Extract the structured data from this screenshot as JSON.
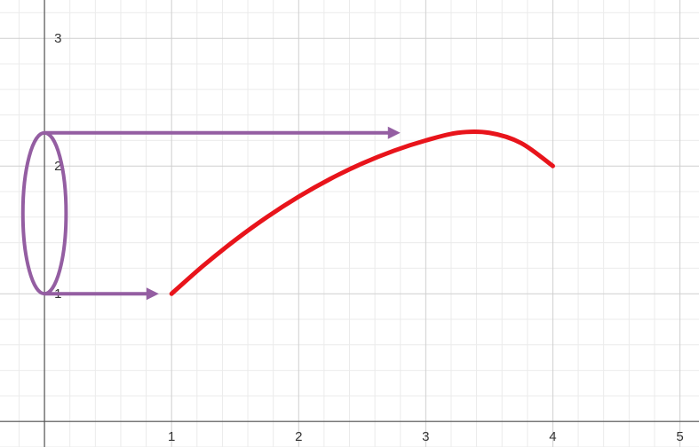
{
  "colors": {
    "curve": "#e8141b",
    "annotation": "#945ea2",
    "grid_minor": "#ebebeb",
    "grid_major": "#cfcfcf",
    "axis": "#555555"
  },
  "chart_data": {
    "type": "line",
    "title": "",
    "xlabel": "",
    "ylabel": "",
    "xlim": [
      -0.35,
      5.15
    ],
    "ylim": [
      -0.2,
      3.3
    ],
    "grid": true,
    "x_ticks": [
      "1",
      "2",
      "3",
      "4",
      "5"
    ],
    "y_ticks": [
      "1",
      "2",
      "3"
    ],
    "series": [
      {
        "x": [
          1.0,
          1.25,
          1.5,
          1.75,
          2.0,
          2.25,
          2.5,
          2.75,
          3.0,
          3.25,
          3.5,
          3.75,
          4.0
        ],
        "y": [
          1.0,
          1.22,
          1.42,
          1.6,
          1.76,
          1.9,
          2.02,
          2.12,
          2.2,
          2.26,
          2.26,
          2.18,
          2.0
        ]
      }
    ],
    "annotations": {
      "range_ellipse": {
        "x_center": 0.0,
        "y_min": 1.0,
        "y_max": 2.26,
        "x_half_width": 0.17
      },
      "arrows": [
        {
          "from": [
            0.0,
            2.26
          ],
          "to": [
            2.8,
            2.26
          ]
        },
        {
          "from": [
            0.0,
            1.0
          ],
          "to": [
            0.9,
            1.0
          ]
        }
      ]
    }
  }
}
